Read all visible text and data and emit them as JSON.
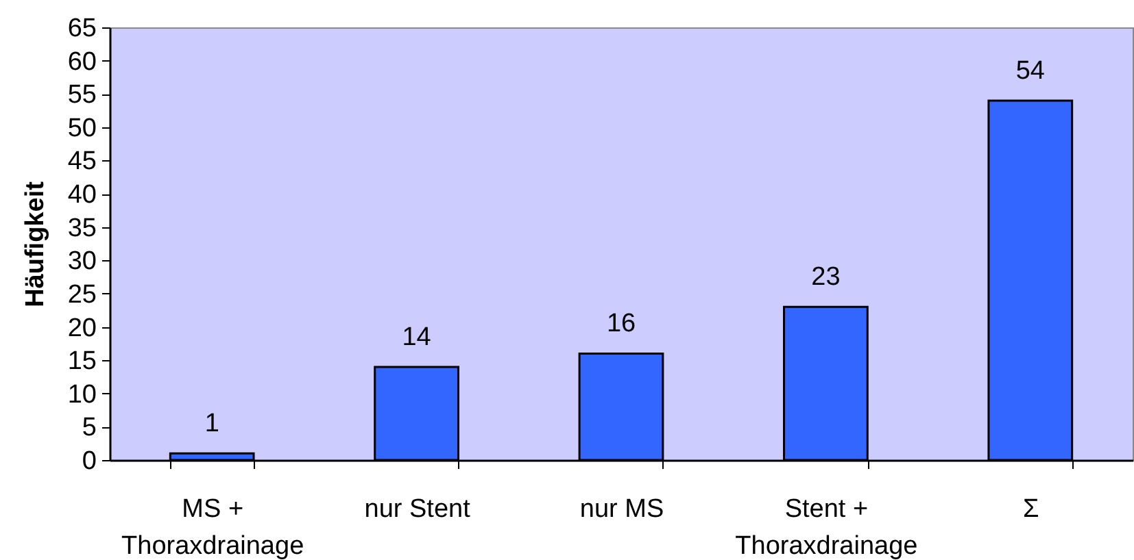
{
  "chart_data": {
    "type": "bar",
    "ylabel": "Häufigkeit",
    "categories": [
      "MS + Thoraxdrainage",
      "nur Stent",
      "nur MS",
      "Stent + Thoraxdrainage",
      "Σ"
    ],
    "values": [
      1,
      14,
      16,
      23,
      54
    ],
    "color": "#3366ff",
    "ylim": [
      0,
      65
    ],
    "yticks": [
      0,
      5,
      10,
      15,
      20,
      25,
      30,
      35,
      40,
      45,
      50,
      55,
      60,
      65
    ],
    "data_labels": true
  }
}
